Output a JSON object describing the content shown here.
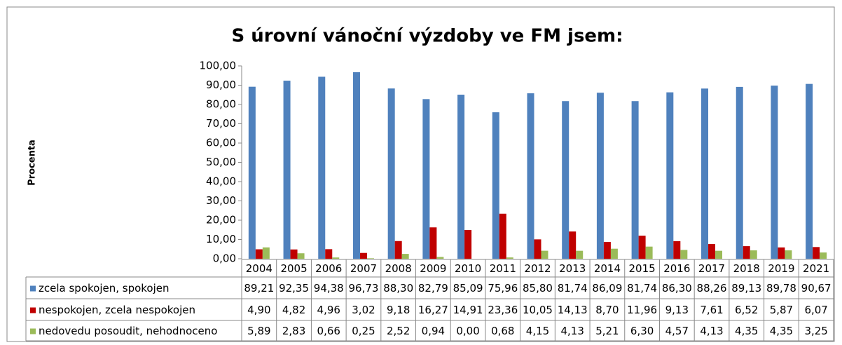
{
  "chart_data": {
    "type": "bar",
    "title": "S úrovní vánoční výzdoby ve FM jsem:",
    "ylabel": "Procenta",
    "categories": [
      "2004",
      "2005",
      "2006",
      "2007",
      "2008",
      "2009",
      "2010",
      "2011",
      "2012",
      "2013",
      "2014",
      "2015",
      "2016",
      "2017",
      "2018",
      "2019",
      "2021"
    ],
    "series": [
      {
        "name": "zcela spokojen, spokojen",
        "color": "#4f81bd",
        "values": [
          89.21,
          92.35,
          94.38,
          96.73,
          88.3,
          82.79,
          85.09,
          75.96,
          85.8,
          81.74,
          86.09,
          81.74,
          86.3,
          88.26,
          89.13,
          89.78,
          90.67
        ],
        "value_labels": [
          "89,21",
          "92,35",
          "94,38",
          "96,73",
          "88,30",
          "82,79",
          "85,09",
          "75,96",
          "85,80",
          "81,74",
          "86,09",
          "81,74",
          "86,30",
          "88,26",
          "89,13",
          "89,78",
          "90,67"
        ]
      },
      {
        "name": "nespokojen, zcela nespokojen",
        "color": "#c00000",
        "values": [
          4.9,
          4.82,
          4.96,
          3.02,
          9.18,
          16.27,
          14.91,
          23.36,
          10.05,
          14.13,
          8.7,
          11.96,
          9.13,
          7.61,
          6.52,
          5.87,
          6.07
        ],
        "value_labels": [
          "4,90",
          "4,82",
          "4,96",
          "3,02",
          "9,18",
          "16,27",
          "14,91",
          "23,36",
          "10,05",
          "14,13",
          "8,70",
          "11,96",
          "9,13",
          "7,61",
          "6,52",
          "5,87",
          "6,07"
        ]
      },
      {
        "name": "nedovedu posoudit, nehodnoceno",
        "color": "#9bbb59",
        "values": [
          5.89,
          2.83,
          0.66,
          0.25,
          2.52,
          0.94,
          0.0,
          0.68,
          4.15,
          4.13,
          5.21,
          6.3,
          4.57,
          4.13,
          4.35,
          4.35,
          3.25
        ],
        "value_labels": [
          "5,89",
          "2,83",
          "0,66",
          "0,25",
          "2,52",
          "0,94",
          "0,00",
          "0,68",
          "4,15",
          "4,13",
          "5,21",
          "6,30",
          "4,57",
          "4,13",
          "4,35",
          "4,35",
          "3,25"
        ]
      }
    ],
    "ylim": [
      0,
      100
    ],
    "yticks": [
      {
        "value": 0,
        "label": "0,00"
      },
      {
        "value": 10,
        "label": "10,00"
      },
      {
        "value": 20,
        "label": "20,00"
      },
      {
        "value": 30,
        "label": "30,00"
      },
      {
        "value": 40,
        "label": "40,00"
      },
      {
        "value": 50,
        "label": "50,00"
      },
      {
        "value": 60,
        "label": "60,00"
      },
      {
        "value": 70,
        "label": "70,00"
      },
      {
        "value": 80,
        "label": "80,00"
      },
      {
        "value": 90,
        "label": "90,00"
      },
      {
        "value": 100,
        "label": "100,00"
      }
    ]
  }
}
